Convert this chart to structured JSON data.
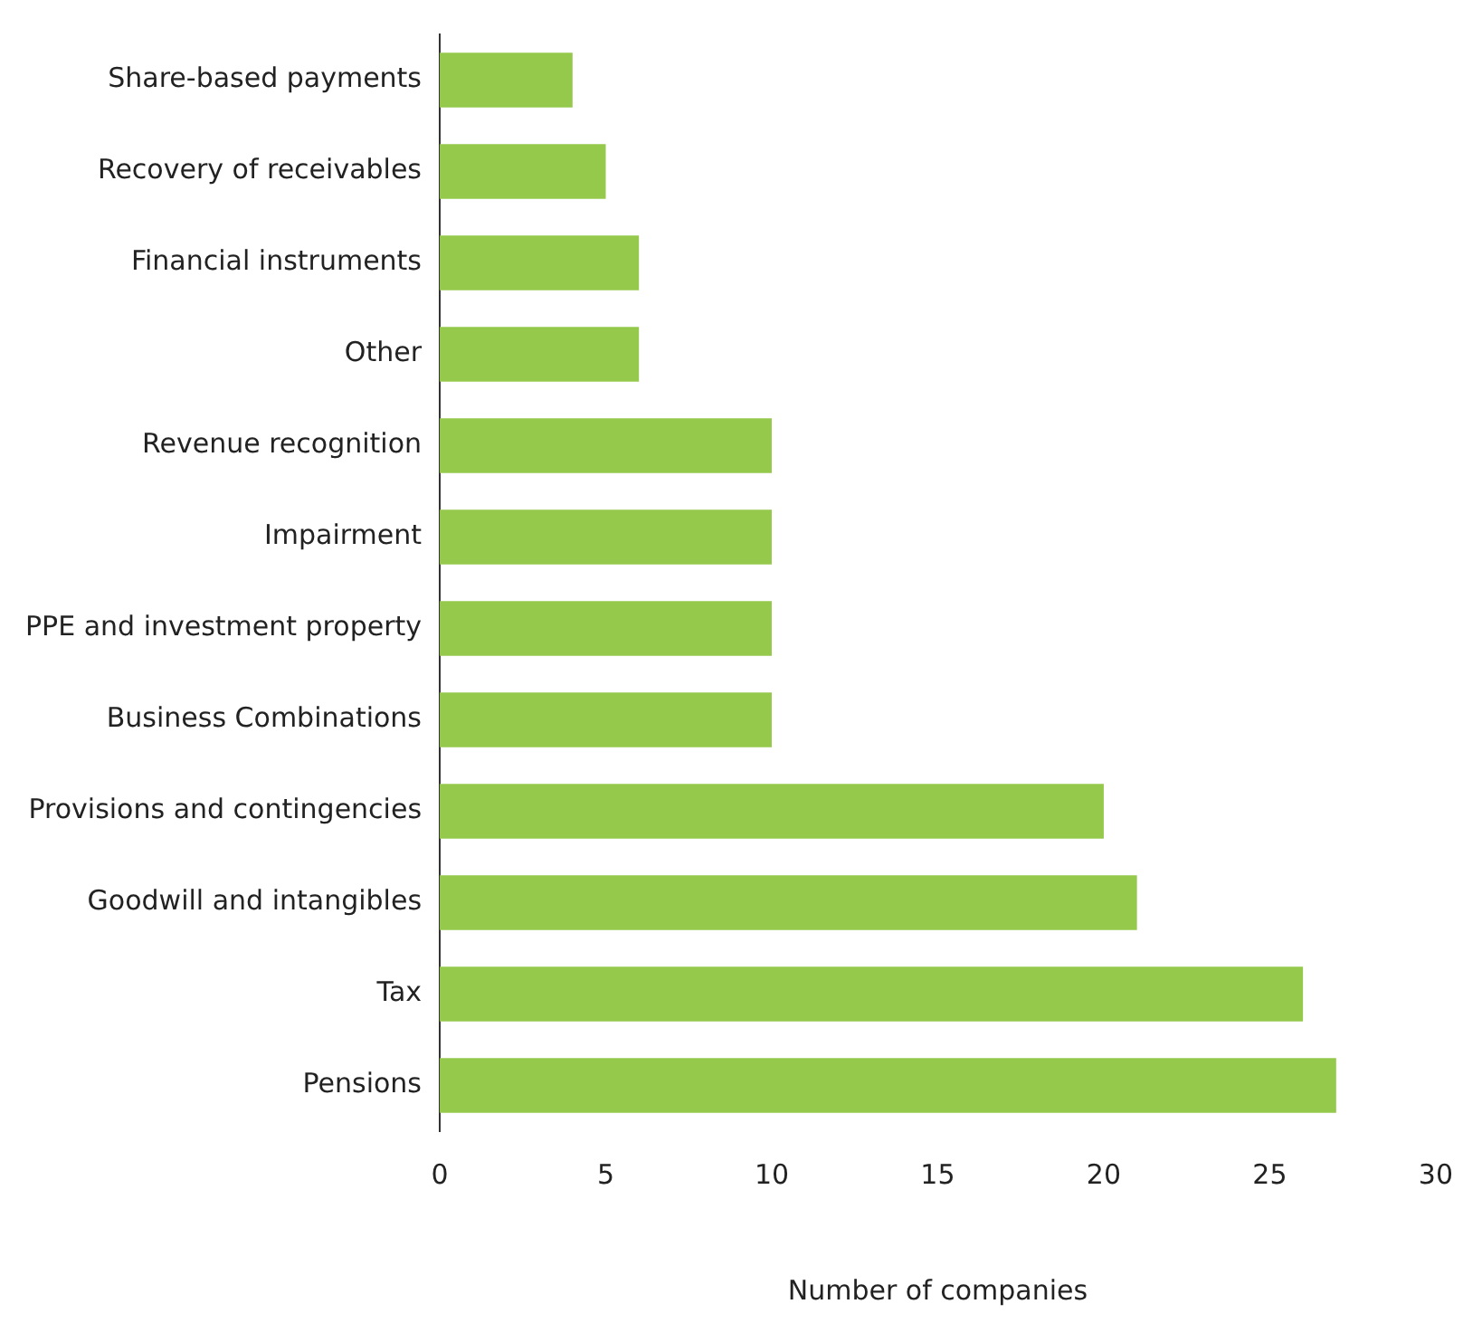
{
  "chart_data": {
    "type": "bar",
    "orientation": "horizontal",
    "xlabel": "Number of companies",
    "categories": [
      "Share-based payments",
      "Recovery of receivables",
      "Financial instruments",
      "Other",
      "Revenue recognition",
      "Impairment",
      "PPE and investment property",
      "Business Combinations",
      "Provisions and contingencies",
      "Goodwill and intangibles",
      "Tax",
      "Pensions"
    ],
    "values": [
      4,
      5,
      6,
      6,
      10,
      10,
      10,
      10,
      20,
      21,
      26,
      27
    ],
    "color": "#95c94b",
    "xlim": [
      0,
      30
    ],
    "xticks": [
      0,
      5,
      10,
      15,
      20,
      25,
      30
    ],
    "grid": false,
    "legend": false
  }
}
